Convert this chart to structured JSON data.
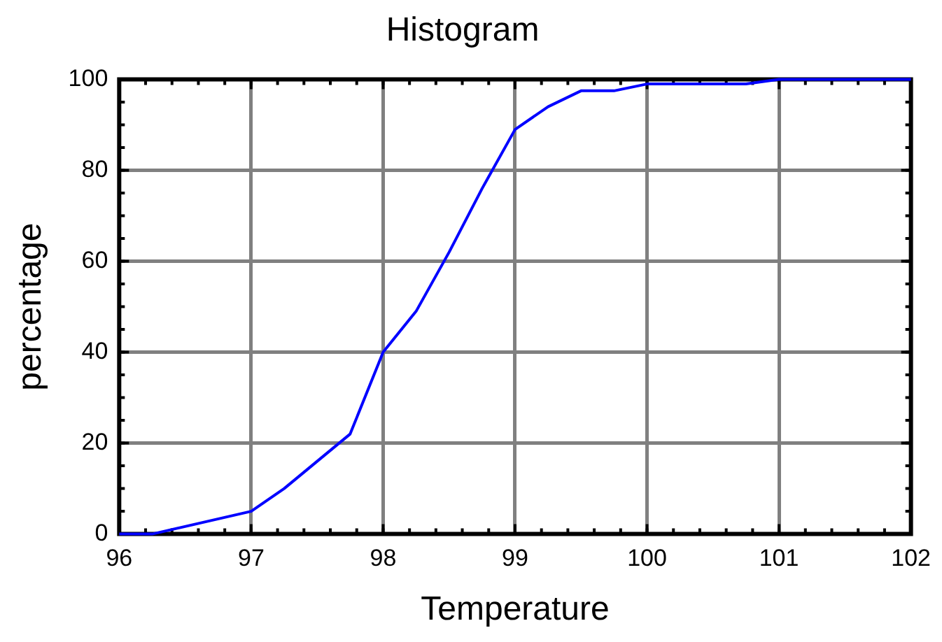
{
  "chart_data": {
    "type": "line",
    "title": "Histogram",
    "xlabel": "Temperature",
    "ylabel": "percentage",
    "x": [
      96,
      96.25,
      97,
      97.25,
      97.75,
      98,
      98.25,
      98.5,
      98.75,
      99,
      99.25,
      99.5,
      99.75,
      100,
      100.75,
      101,
      102
    ],
    "series": [
      {
        "color": "#0000ff",
        "values": [
          0,
          0,
          5,
          10,
          22,
          40,
          49,
          62,
          76,
          89,
          94,
          97.5,
          97.5,
          99,
          99,
          100,
          100
        ]
      }
    ],
    "xlim": [
      96,
      102
    ],
    "xticks": [
      96,
      97,
      98,
      99,
      100,
      101,
      102
    ],
    "ylim": [
      0,
      100
    ],
    "yticks": [
      0,
      20,
      40,
      60,
      80,
      100
    ],
    "grid": true,
    "legend": false,
    "marker": "none",
    "line_style": "solid"
  }
}
